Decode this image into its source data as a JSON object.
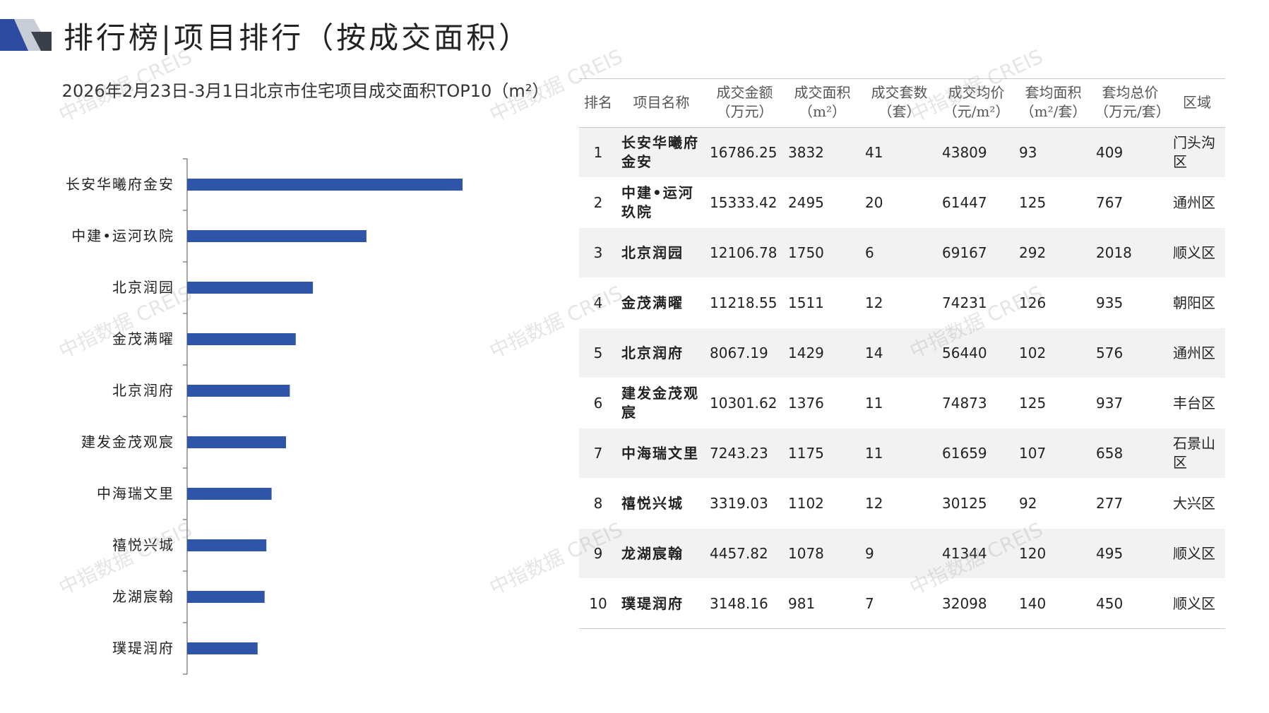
{
  "header": {
    "title": "排行榜|项目排行（按成交面积）"
  },
  "chart_data": {
    "type": "bar",
    "orientation": "horizontal",
    "title": "2026年2月23日-3月1日北京市住宅项目成交面积TOP10（m²）",
    "categories": [
      "长安华曦府金安",
      "中建•运河玖院",
      "北京润园",
      "金茂满曜",
      "北京润府",
      "建发金茂观宸",
      "中海瑞文里",
      "禧悦兴城",
      "龙湖宸翰",
      "璞瑅润府"
    ],
    "values": [
      3832,
      2495,
      1750,
      1511,
      1429,
      1376,
      1175,
      1102,
      1078,
      981
    ],
    "xlabel": "",
    "ylabel": "",
    "xlim": [
      0,
      7000
    ],
    "grid": false,
    "legend": "none",
    "bar_color": "#2e55a8"
  },
  "table": {
    "headers": [
      {
        "line1": "排名",
        "line2": ""
      },
      {
        "line1": "项目名称",
        "line2": ""
      },
      {
        "line1": "成交金额",
        "line2": "（万元）"
      },
      {
        "line1": "成交面积",
        "line2": "（m²）"
      },
      {
        "line1": "成交套数",
        "line2": "（套）"
      },
      {
        "line1": "成交均价",
        "line2": "（元/m²）"
      },
      {
        "line1": "套均面积",
        "line2": "（m²/套）"
      },
      {
        "line1": "套均总价",
        "line2": "（万元/套）"
      },
      {
        "line1": "区域",
        "line2": ""
      }
    ],
    "rows": [
      {
        "rank": "1",
        "name": "长安华曦府金安",
        "amount": "16786.25",
        "area": "3832",
        "units": "41",
        "avg_price": "43809",
        "avg_area": "93",
        "avg_total": "409",
        "district": "门头沟区"
      },
      {
        "rank": "2",
        "name": "中建•运河玖院",
        "amount": "15333.42",
        "area": "2495",
        "units": "20",
        "avg_price": "61447",
        "avg_area": "125",
        "avg_total": "767",
        "district": "通州区"
      },
      {
        "rank": "3",
        "name": "北京润园",
        "amount": "12106.78",
        "area": "1750",
        "units": "6",
        "avg_price": "69167",
        "avg_area": "292",
        "avg_total": "2018",
        "district": "顺义区"
      },
      {
        "rank": "4",
        "name": "金茂满曜",
        "amount": "11218.55",
        "area": "1511",
        "units": "12",
        "avg_price": "74231",
        "avg_area": "126",
        "avg_total": "935",
        "district": "朝阳区"
      },
      {
        "rank": "5",
        "name": "北京润府",
        "amount": "8067.19",
        "area": "1429",
        "units": "14",
        "avg_price": "56440",
        "avg_area": "102",
        "avg_total": "576",
        "district": "通州区"
      },
      {
        "rank": "6",
        "name": "建发金茂观宸",
        "amount": "10301.62",
        "area": "1376",
        "units": "11",
        "avg_price": "74873",
        "avg_area": "125",
        "avg_total": "937",
        "district": "丰台区"
      },
      {
        "rank": "7",
        "name": "中海瑞文里",
        "amount": "7243.23",
        "area": "1175",
        "units": "11",
        "avg_price": "61659",
        "avg_area": "107",
        "avg_total": "658",
        "district": "石景山区"
      },
      {
        "rank": "8",
        "name": "禧悦兴城",
        "amount": "3319.03",
        "area": "1102",
        "units": "12",
        "avg_price": "30125",
        "avg_area": "92",
        "avg_total": "277",
        "district": "大兴区"
      },
      {
        "rank": "9",
        "name": "龙湖宸翰",
        "amount": "4457.82",
        "area": "1078",
        "units": "9",
        "avg_price": "41344",
        "avg_area": "120",
        "avg_total": "495",
        "district": "顺义区"
      },
      {
        "rank": "10",
        "name": "璞瑅润府",
        "amount": "3148.16",
        "area": "981",
        "units": "7",
        "avg_price": "32098",
        "avg_area": "140",
        "avg_total": "450",
        "district": "顺义区"
      }
    ]
  },
  "watermark": {
    "text": "中指数据 CREIS"
  },
  "colors": {
    "bar": "#2e55a8",
    "logo_dark": "#2e4aa0",
    "logo_light": "#c8ccd4",
    "row_shade": "#f2f2f2"
  }
}
